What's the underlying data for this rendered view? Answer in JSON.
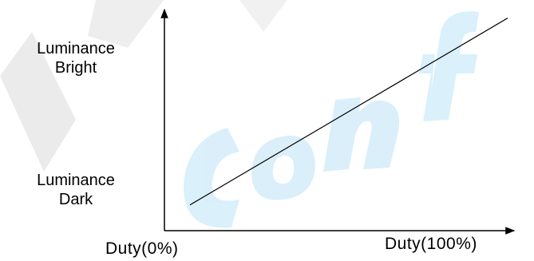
{
  "chart_data": {
    "type": "line",
    "title": "",
    "xlabel": "",
    "ylabel": "",
    "y_tick_labels": {
      "top": [
        "Luminance",
        "Bright"
      ],
      "bottom": [
        "Luminance",
        "Dark"
      ]
    },
    "x_tick_labels": [
      "Duty(0%)",
      "Duty(100%)"
    ],
    "series": [
      {
        "x": [
          0,
          100
        ],
        "y": [
          0.12,
          0.99
        ]
      }
    ],
    "xlim": [
      0,
      100
    ],
    "ylim": [
      0,
      1
    ],
    "grid": false,
    "colors": {
      "line": "#000000",
      "axis": "#000000",
      "watermark": "#dcdcdc",
      "watermark_accent": "#cfe9f7"
    }
  }
}
